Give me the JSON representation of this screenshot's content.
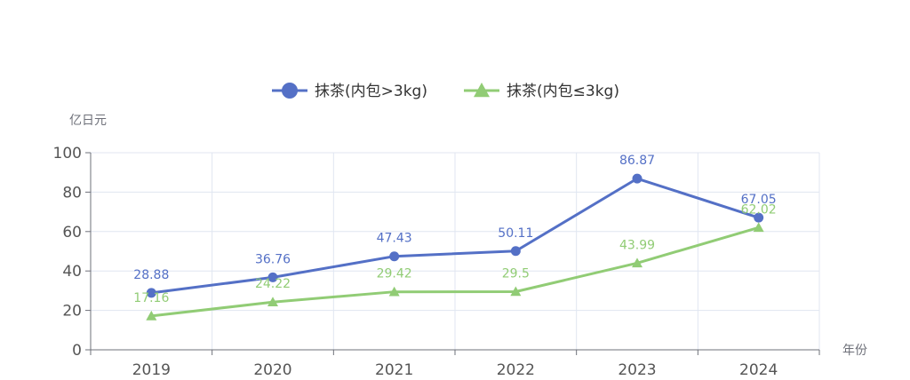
{
  "chart_data": {
    "type": "line",
    "categories": [
      "2019",
      "2020",
      "2021",
      "2022",
      "2023",
      "2024"
    ],
    "series": [
      {
        "name": "抹茶(内包>3kg)",
        "values": [
          28.88,
          36.76,
          47.43,
          50.11,
          86.87,
          67.05
        ],
        "color": "#5470c6",
        "marker": "circle"
      },
      {
        "name": "抹茶(内包≤3kg)",
        "values": [
          17.16,
          24.22,
          29.42,
          29.5,
          43.99,
          62.02
        ],
        "color": "#91cc75",
        "marker": "triangle"
      }
    ],
    "ylabel": "亿日元",
    "xlabel": "年份",
    "ylim": [
      0,
      100
    ],
    "yticks": [
      0,
      20,
      40,
      60,
      80,
      100
    ],
    "grid": true,
    "legend_position": "top-center"
  }
}
